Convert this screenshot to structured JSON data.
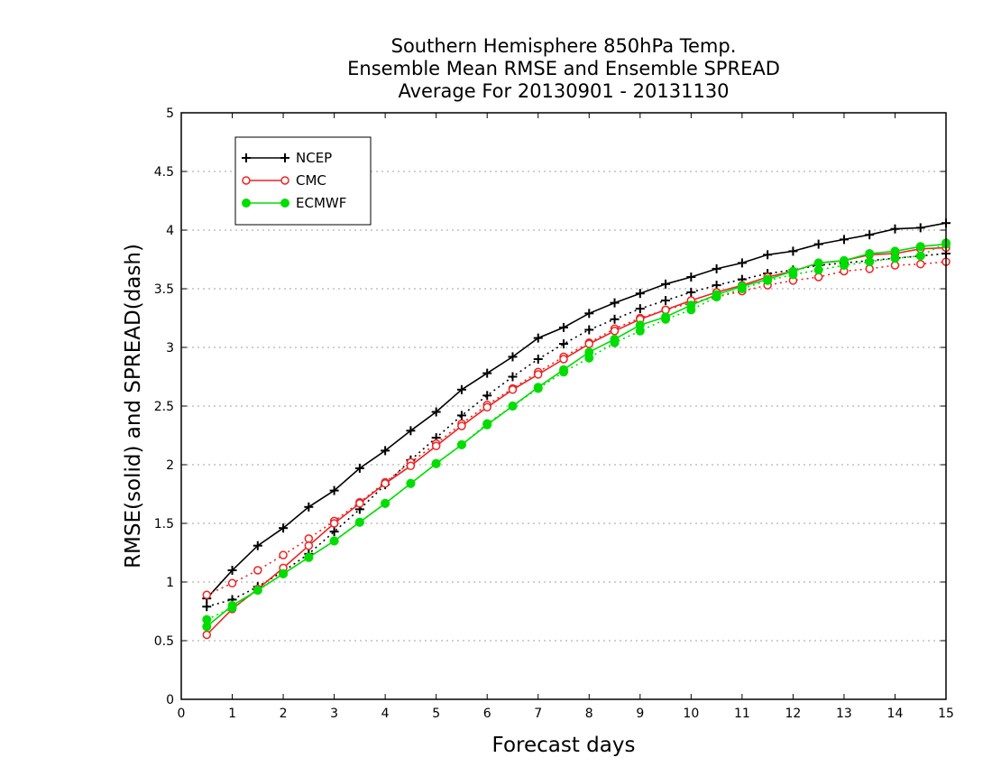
{
  "chart_data": {
    "type": "line",
    "title": [
      "Southern Hemisphere 850hPa Temp.",
      "Ensemble Mean RMSE and Ensemble SPREAD",
      "Average For 20130901 - 20131130"
    ],
    "xlabel": "Forecast days",
    "ylabel": "RMSE(solid) and SPREAD(dash)",
    "xlim": [
      0,
      15
    ],
    "ylim": [
      0,
      5
    ],
    "x_ticks": [
      0,
      1,
      2,
      3,
      4,
      5,
      6,
      7,
      8,
      9,
      10,
      11,
      12,
      13,
      14,
      15
    ],
    "x_tick_labels": [
      "0",
      "1",
      "2",
      "3",
      "4",
      "5",
      "6",
      "7",
      "8",
      "9",
      "10",
      "11",
      "12",
      "13",
      "14",
      "15"
    ],
    "y_ticks": [
      0,
      0.5,
      1,
      1.5,
      2,
      2.5,
      3,
      3.5,
      4,
      4.5,
      5
    ],
    "y_tick_labels": [
      "0",
      "0.5",
      "1",
      "1.5",
      "2",
      "2.5",
      "3",
      "3.5",
      "4",
      "4.5",
      "5"
    ],
    "grid": "horizontal dotted",
    "legend_position": "top-left",
    "x": [
      0.5,
      1,
      1.5,
      2,
      2.5,
      3,
      3.5,
      4,
      4.5,
      5,
      5.5,
      6,
      6.5,
      7,
      7.5,
      8,
      8.5,
      9,
      9.5,
      10,
      10.5,
      11,
      11.5,
      12,
      12.5,
      13,
      13.5,
      14,
      14.5,
      15
    ],
    "series": [
      {
        "name": "NCEP",
        "color": "#000000",
        "marker": "plus",
        "rmse": [
          0.86,
          1.1,
          1.31,
          1.46,
          1.64,
          1.78,
          1.97,
          2.12,
          2.29,
          2.45,
          2.64,
          2.78,
          2.92,
          3.08,
          3.17,
          3.29,
          3.38,
          3.46,
          3.54,
          3.6,
          3.67,
          3.72,
          3.79,
          3.82,
          3.88,
          3.92,
          3.96,
          4.01,
          4.02,
          4.06
        ],
        "spread": [
          0.79,
          0.85,
          0.96,
          1.09,
          1.24,
          1.43,
          1.62,
          1.83,
          2.04,
          2.23,
          2.42,
          2.59,
          2.75,
          2.9,
          3.03,
          3.15,
          3.24,
          3.33,
          3.4,
          3.47,
          3.53,
          3.58,
          3.63,
          3.66,
          3.7,
          3.72,
          3.74,
          3.76,
          3.78,
          3.8
        ]
      },
      {
        "name": "CMC",
        "color": "#ee2222",
        "marker": "open-circle",
        "rmse": [
          0.55,
          0.77,
          0.94,
          1.12,
          1.31,
          1.5,
          1.67,
          1.84,
          1.99,
          2.16,
          2.33,
          2.49,
          2.64,
          2.77,
          2.9,
          3.03,
          3.14,
          3.24,
          3.32,
          3.4,
          3.47,
          3.53,
          3.6,
          3.65,
          3.72,
          3.74,
          3.79,
          3.8,
          3.84,
          3.85
        ],
        "spread": [
          0.89,
          0.99,
          1.1,
          1.23,
          1.37,
          1.52,
          1.68,
          1.85,
          2.02,
          2.18,
          2.35,
          2.51,
          2.65,
          2.79,
          2.92,
          3.04,
          3.16,
          3.25,
          3.32,
          3.38,
          3.43,
          3.48,
          3.53,
          3.57,
          3.6,
          3.65,
          3.67,
          3.7,
          3.71,
          3.73
        ]
      },
      {
        "name": "ECMWF",
        "color": "#00dd00",
        "marker": "filled-circle",
        "rmse": [
          0.62,
          0.8,
          0.93,
          1.07,
          1.21,
          1.35,
          1.51,
          1.67,
          1.84,
          2.01,
          2.17,
          2.34,
          2.5,
          2.66,
          2.81,
          2.96,
          3.07,
          3.19,
          3.26,
          3.36,
          3.45,
          3.52,
          3.58,
          3.65,
          3.72,
          3.74,
          3.8,
          3.82,
          3.86,
          3.88
        ],
        "spread": [
          0.68,
          0.78,
          0.93,
          1.07,
          1.21,
          1.35,
          1.51,
          1.67,
          1.84,
          2.01,
          2.17,
          2.35,
          2.5,
          2.65,
          2.79,
          2.91,
          3.04,
          3.14,
          3.24,
          3.32,
          3.43,
          3.5,
          3.57,
          3.62,
          3.66,
          3.7,
          3.73,
          3.76,
          3.78,
          3.89
        ]
      }
    ]
  }
}
